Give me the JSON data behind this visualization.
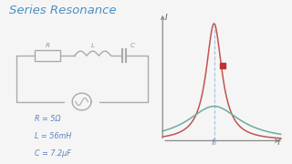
{
  "title": "Series Resonance",
  "title_color": "#4a90c4",
  "title_fontsize": 9.5,
  "bg_color": "#f5f5f5",
  "wire_color": "#aaaaaa",
  "text_color": "#5a80bf",
  "circuit_label_color": "#7a9abf",
  "params": [
    "R = 5Ω",
    "L = 56mH",
    "C = 7.2μF"
  ],
  "graph_x_label": "f",
  "graph_y_label": "I",
  "graph_f0_label": "f₀",
  "curve1_color": "#c05550",
  "curve2_color": "#6aada0",
  "red_square_color": "#c03030",
  "dashed_color": "#90b8d8",
  "axis_color": "#888888"
}
